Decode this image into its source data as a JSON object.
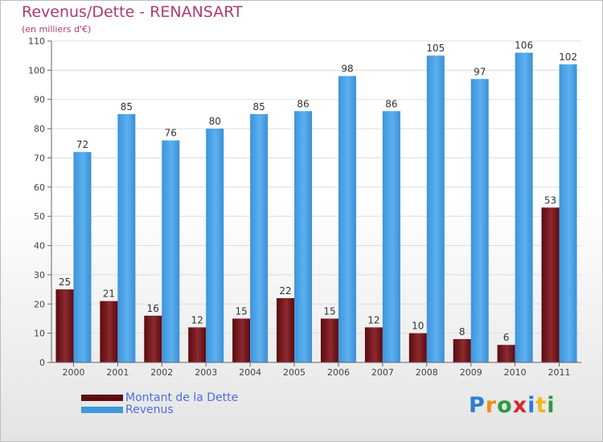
{
  "header": {
    "title": "Revenus/Dette - RENANSART",
    "subtitle": "(en milliers d'€)"
  },
  "chart_data": {
    "type": "bar",
    "categories": [
      "2000",
      "2001",
      "2002",
      "2003",
      "2004",
      "2005",
      "2006",
      "2007",
      "2008",
      "2009",
      "2010",
      "2011"
    ],
    "series": [
      {
        "name": "Montant de la Dette",
        "color": "#7a1d22",
        "values": [
          25,
          21,
          16,
          12,
          15,
          22,
          15,
          12,
          10,
          8,
          6,
          53
        ]
      },
      {
        "name": "Revenus",
        "color": "#4aa3e6",
        "values": [
          72,
          85,
          76,
          80,
          85,
          86,
          98,
          86,
          105,
          97,
          106,
          102
        ]
      }
    ],
    "ylim": [
      0,
      110
    ],
    "yticks": [
      0,
      10,
      20,
      30,
      40,
      50,
      60,
      70,
      80,
      90,
      100,
      110
    ],
    "grid": true,
    "legend_position": "bottom-left"
  },
  "legend": [
    {
      "label": "Montant de la Dette",
      "color": "#5c0d12"
    },
    {
      "label": "Revenus",
      "color": "#3f97dc"
    }
  ],
  "logo": {
    "letters": [
      "P",
      "r",
      "o",
      "x",
      "i",
      "t",
      "i"
    ],
    "colors": [
      "#2e7cd6",
      "#f08c1e",
      "#2e9a3e",
      "#d42a2a",
      "#2e7cd6",
      "#f0b81e",
      "#2e9a3e"
    ]
  }
}
